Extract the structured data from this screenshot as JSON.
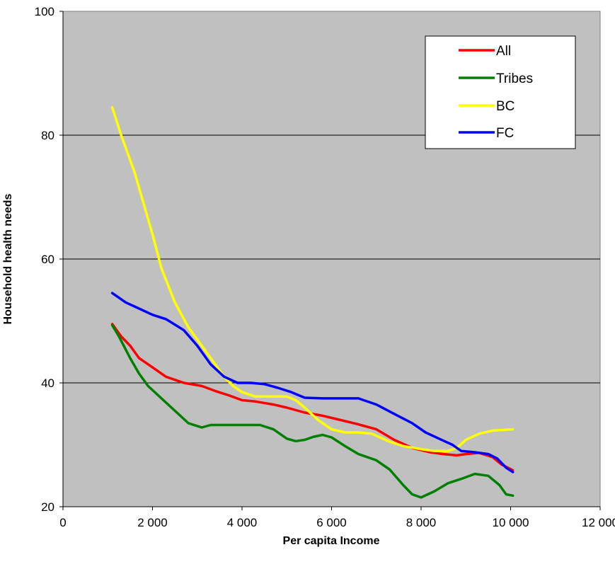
{
  "chart_data": {
    "type": "line",
    "title": "",
    "xlabel": "Per capita Income",
    "ylabel": "Household health needs",
    "xlim": [
      0,
      12000
    ],
    "ylim": [
      20,
      100
    ],
    "xticks": [
      0,
      2000,
      4000,
      6000,
      8000,
      10000,
      12000
    ],
    "xtick_labels": [
      "0",
      "2 000",
      "4 000",
      "6 000",
      "8 000",
      "10 000",
      "12 000"
    ],
    "yticks": [
      20,
      40,
      60,
      80,
      100
    ],
    "ytick_labels": [
      "20",
      "40",
      "60",
      "80",
      "100"
    ],
    "grid": "horizontal",
    "plot_background": "#c0c0c0",
    "legend_position": "top-right",
    "series": [
      {
        "name": "All",
        "color": "#ff0000",
        "points": [
          [
            1100,
            49.5
          ],
          [
            1300,
            47.5
          ],
          [
            1500,
            46
          ],
          [
            1700,
            44
          ],
          [
            2000,
            42.5
          ],
          [
            2300,
            41
          ],
          [
            2700,
            40
          ],
          [
            3100,
            39.5
          ],
          [
            3400,
            38.7
          ],
          [
            3700,
            38
          ],
          [
            4000,
            37.2
          ],
          [
            4300,
            37
          ],
          [
            4700,
            36.5
          ],
          [
            5000,
            36
          ],
          [
            5400,
            35.2
          ],
          [
            5800,
            34.7
          ],
          [
            6200,
            34
          ],
          [
            6600,
            33.3
          ],
          [
            7000,
            32.5
          ],
          [
            7400,
            30.8
          ],
          [
            7800,
            29.5
          ],
          [
            8200,
            28.8
          ],
          [
            8500,
            28.5
          ],
          [
            8800,
            28.3
          ],
          [
            9000,
            28.5
          ],
          [
            9300,
            28.7
          ],
          [
            9600,
            28
          ],
          [
            9800,
            26.8
          ],
          [
            10050,
            25.9
          ]
        ]
      },
      {
        "name": "Tribes",
        "color": "#008000",
        "points": [
          [
            1100,
            49.3
          ],
          [
            1250,
            47.5
          ],
          [
            1500,
            44
          ],
          [
            1700,
            41.5
          ],
          [
            1900,
            39.5
          ],
          [
            2200,
            37.5
          ],
          [
            2500,
            35.5
          ],
          [
            2800,
            33.5
          ],
          [
            3100,
            32.8
          ],
          [
            3300,
            33.2
          ],
          [
            3600,
            33.2
          ],
          [
            4000,
            33.2
          ],
          [
            4400,
            33.2
          ],
          [
            4700,
            32.5
          ],
          [
            5000,
            31
          ],
          [
            5200,
            30.6
          ],
          [
            5400,
            30.8
          ],
          [
            5600,
            31.3
          ],
          [
            5800,
            31.6
          ],
          [
            6000,
            31.2
          ],
          [
            6300,
            29.8
          ],
          [
            6600,
            28.5
          ],
          [
            7000,
            27.5
          ],
          [
            7300,
            26
          ],
          [
            7600,
            23.5
          ],
          [
            7800,
            22
          ],
          [
            8000,
            21.5
          ],
          [
            8300,
            22.5
          ],
          [
            8600,
            23.8
          ],
          [
            8900,
            24.5
          ],
          [
            9200,
            25.3
          ],
          [
            9500,
            25
          ],
          [
            9750,
            23.5
          ],
          [
            9900,
            22
          ],
          [
            10050,
            21.8
          ]
        ]
      },
      {
        "name": "BC",
        "color": "#ffff00",
        "points": [
          [
            1100,
            84.5
          ],
          [
            1300,
            80
          ],
          [
            1600,
            74
          ],
          [
            1800,
            69
          ],
          [
            2000,
            64
          ],
          [
            2200,
            58.5
          ],
          [
            2500,
            53
          ],
          [
            2800,
            49
          ],
          [
            3100,
            46
          ],
          [
            3300,
            44
          ],
          [
            3600,
            41
          ],
          [
            3800,
            39.5
          ],
          [
            4000,
            38.5
          ],
          [
            4300,
            37.8
          ],
          [
            4600,
            37.8
          ],
          [
            5000,
            37.8
          ],
          [
            5200,
            37.2
          ],
          [
            5400,
            36
          ],
          [
            5700,
            34
          ],
          [
            6000,
            32.5
          ],
          [
            6300,
            32
          ],
          [
            6600,
            32
          ],
          [
            6900,
            31.8
          ],
          [
            7300,
            30.5
          ],
          [
            7600,
            29.8
          ],
          [
            8000,
            29.3
          ],
          [
            8300,
            29
          ],
          [
            8600,
            29
          ],
          [
            8800,
            29.5
          ],
          [
            9000,
            30.8
          ],
          [
            9300,
            31.8
          ],
          [
            9600,
            32.3
          ],
          [
            10050,
            32.5
          ]
        ]
      },
      {
        "name": "FC",
        "color": "#0000ff",
        "points": [
          [
            1100,
            54.5
          ],
          [
            1400,
            53
          ],
          [
            1700,
            52
          ],
          [
            2000,
            51
          ],
          [
            2300,
            50.3
          ],
          [
            2700,
            48.5
          ],
          [
            3000,
            46
          ],
          [
            3300,
            43
          ],
          [
            3600,
            41
          ],
          [
            3900,
            40
          ],
          [
            4200,
            40
          ],
          [
            4500,
            39.8
          ],
          [
            4800,
            39.2
          ],
          [
            5100,
            38.5
          ],
          [
            5400,
            37.6
          ],
          [
            5800,
            37.5
          ],
          [
            6200,
            37.5
          ],
          [
            6600,
            37.5
          ],
          [
            7000,
            36.5
          ],
          [
            7400,
            35
          ],
          [
            7800,
            33.5
          ],
          [
            8100,
            32
          ],
          [
            8400,
            31
          ],
          [
            8700,
            30
          ],
          [
            8900,
            29
          ],
          [
            9200,
            28.8
          ],
          [
            9500,
            28.5
          ],
          [
            9700,
            27.8
          ],
          [
            9900,
            26.3
          ],
          [
            10050,
            25.6
          ]
        ]
      }
    ]
  }
}
